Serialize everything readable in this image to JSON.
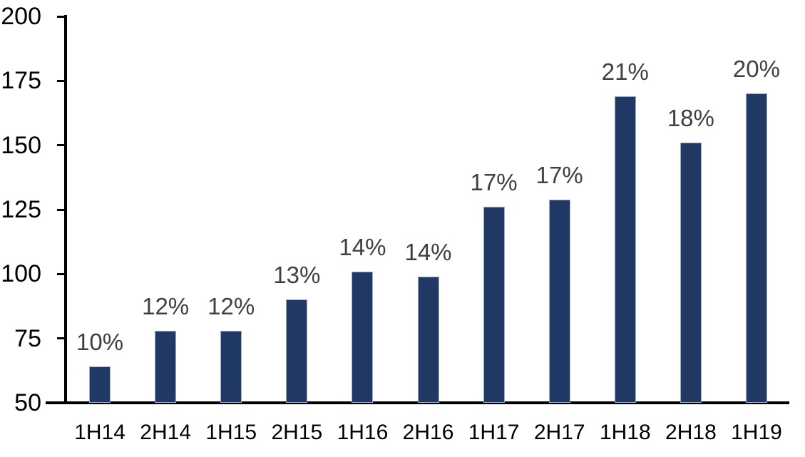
{
  "chart_data": {
    "type": "bar",
    "title": "",
    "xlabel": "",
    "ylabel": "",
    "categories": [
      "1H14",
      "2H14",
      "1H15",
      "2H15",
      "1H16",
      "2H16",
      "1H17",
      "2H17",
      "1H18",
      "2H18",
      "1H19"
    ],
    "values": [
      64,
      78,
      78,
      90,
      101,
      99,
      126,
      129,
      169,
      151,
      170
    ],
    "bar_labels": [
      "10%",
      "12%",
      "12%",
      "13%",
      "14%",
      "14%",
      "17%",
      "17%",
      "21%",
      "18%",
      "20%"
    ],
    "ylim": [
      50,
      200
    ],
    "yticks": [
      50,
      75,
      100,
      125,
      150,
      175,
      200
    ],
    "grid": false,
    "legend_position": "none",
    "colors": {
      "bar_fill": "#1f3864",
      "bar_border": "#9fabc4",
      "bar_label_text": "#404040",
      "axis_line": "#000000",
      "axis_tick_text": "#000000",
      "background": "#ffffff"
    }
  }
}
